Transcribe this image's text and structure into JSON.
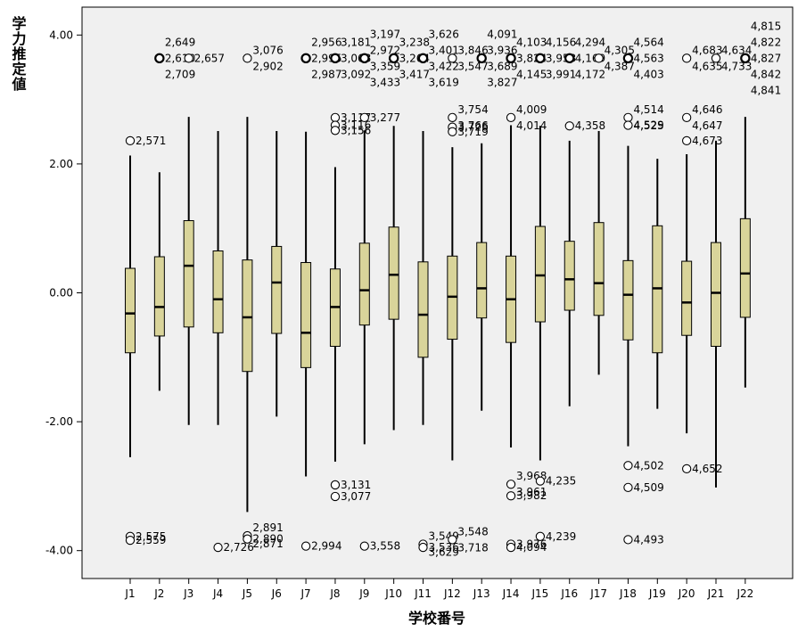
{
  "chart_data": {
    "type": "boxplot",
    "xlabel": "学校番号",
    "ylabel": "学力推定値",
    "ylim": [
      -4.5,
      4.4
    ],
    "yticks": [
      4.0,
      2.0,
      0.0,
      -2.0,
      -4.0
    ],
    "ytick_labels": [
      "4.00",
      "2.00",
      "0.00",
      "-2.00",
      "-4.00"
    ],
    "grid": false,
    "colors": {
      "box_fill": "#d9d49a",
      "plot_bg": "#f0f0f0",
      "line": "#000000"
    },
    "categories": [
      "J1",
      "J2",
      "J3",
      "J4",
      "J5",
      "J6",
      "J7",
      "J8",
      "J9",
      "J10",
      "J11",
      "J12",
      "J13",
      "J14",
      "J15",
      "J16",
      "J17",
      "J18",
      "J19",
      "J20",
      "J21",
      "J22"
    ],
    "boxes": [
      {
        "q1": -0.93,
        "median": -0.32,
        "q3": 0.38,
        "lo": -2.55,
        "hi": 2.13
      },
      {
        "q1": -0.67,
        "median": -0.22,
        "q3": 0.56,
        "lo": -1.52,
        "hi": 1.87
      },
      {
        "q1": -0.53,
        "median": 0.42,
        "q3": 1.12,
        "lo": -2.05,
        "hi": 2.73
      },
      {
        "q1": -0.62,
        "median": -0.1,
        "q3": 0.65,
        "lo": -2.05,
        "hi": 2.51
      },
      {
        "q1": -1.22,
        "median": -0.38,
        "q3": 0.51,
        "lo": -3.4,
        "hi": 2.73
      },
      {
        "q1": -0.63,
        "median": 0.16,
        "q3": 0.72,
        "lo": -1.92,
        "hi": 2.51
      },
      {
        "q1": -1.16,
        "median": -0.62,
        "q3": 0.47,
        "lo": -2.85,
        "hi": 2.5
      },
      {
        "q1": -0.83,
        "median": -0.22,
        "q3": 0.37,
        "lo": -2.62,
        "hi": 1.95
      },
      {
        "q1": -0.5,
        "median": 0.04,
        "q3": 0.77,
        "lo": -2.35,
        "hi": 2.52
      },
      {
        "q1": -0.41,
        "median": 0.28,
        "q3": 1.02,
        "lo": -2.13,
        "hi": 2.59
      },
      {
        "q1": -1.0,
        "median": -0.34,
        "q3": 0.48,
        "lo": -2.05,
        "hi": 2.51
      },
      {
        "q1": -0.72,
        "median": -0.06,
        "q3": 0.57,
        "lo": -2.6,
        "hi": 2.26
      },
      {
        "q1": -0.39,
        "median": 0.07,
        "q3": 0.78,
        "lo": -1.83,
        "hi": 2.32
      },
      {
        "q1": -0.77,
        "median": -0.1,
        "q3": 0.57,
        "lo": -2.4,
        "hi": 2.6
      },
      {
        "q1": -0.45,
        "median": 0.27,
        "q3": 1.03,
        "lo": -2.6,
        "hi": 2.59
      },
      {
        "q1": -0.27,
        "median": 0.21,
        "q3": 0.8,
        "lo": -1.76,
        "hi": 2.36
      },
      {
        "q1": -0.35,
        "median": 0.15,
        "q3": 1.09,
        "lo": -1.27,
        "hi": 2.51
      },
      {
        "q1": -0.73,
        "median": -0.03,
        "q3": 0.5,
        "lo": -2.38,
        "hi": 2.28
      },
      {
        "q1": -0.93,
        "median": 0.07,
        "q3": 1.04,
        "lo": -1.8,
        "hi": 2.08
      },
      {
        "q1": -0.66,
        "median": -0.15,
        "q3": 0.49,
        "lo": -2.18,
        "hi": 2.15
      },
      {
        "q1": -0.83,
        "median": 0.0,
        "q3": 0.78,
        "lo": -3.02,
        "hi": 2.36
      },
      {
        "q1": -0.38,
        "median": 0.3,
        "q3": 1.15,
        "lo": -1.47,
        "hi": 2.73
      }
    ],
    "outliers": [
      {
        "cat": "J1",
        "y": 2.36,
        "labels": [
          "2,571"
        ]
      },
      {
        "cat": "J1",
        "y": -3.78,
        "labels": [
          "2,575"
        ]
      },
      {
        "cat": "J1",
        "y": -3.84,
        "labels": [
          "2,559"
        ]
      },
      {
        "cat": "J2",
        "y": 3.64,
        "labels": [
          "2,649",
          "2,610",
          "2,709"
        ]
      },
      {
        "cat": "J3",
        "y": 3.64,
        "labels": [
          "2,657"
        ]
      },
      {
        "cat": "J4",
        "y": -3.95,
        "labels": [
          "2,726"
        ]
      },
      {
        "cat": "J5",
        "y": 3.64,
        "labels": [
          "3,076",
          "2,902"
        ]
      },
      {
        "cat": "J5",
        "y": -3.77,
        "labels": [
          "2,891",
          "2,871"
        ]
      },
      {
        "cat": "J5",
        "y": -3.82,
        "labels": [
          "2,890"
        ]
      },
      {
        "cat": "J7",
        "y": 3.64,
        "labels": [
          "2,956",
          "2,995",
          "2,987"
        ]
      },
      {
        "cat": "J7",
        "y": -3.93,
        "labels": [
          "2,994"
        ]
      },
      {
        "cat": "J8",
        "y": 3.64,
        "labels": [
          "3,181",
          "3,068",
          "3,092"
        ]
      },
      {
        "cat": "J8",
        "y": 2.72,
        "labels": [
          "3,117"
        ]
      },
      {
        "cat": "J8",
        "y": 2.6,
        "labels": [
          "3,116"
        ]
      },
      {
        "cat": "J8",
        "y": 2.52,
        "labels": [
          "3,156"
        ]
      },
      {
        "cat": "J8",
        "y": -2.98,
        "labels": [
          "3,131"
        ]
      },
      {
        "cat": "J8",
        "y": -3.16,
        "labels": [
          "3,077"
        ]
      },
      {
        "cat": "J9",
        "y": 3.64,
        "labels": [
          "3,197",
          "2,972",
          "3,359",
          "3,433"
        ]
      },
      {
        "cat": "J9",
        "y": 2.72,
        "labels": [
          "3,277"
        ]
      },
      {
        "cat": "J9",
        "y": -3.93,
        "labels": [
          "3,558"
        ]
      },
      {
        "cat": "J10",
        "y": 3.64,
        "labels": [
          "3,238",
          "3,264",
          "3,417"
        ]
      },
      {
        "cat": "J11",
        "y": 3.64,
        "labels": [
          "3,626",
          "3,401",
          "3,422",
          "3,619"
        ]
      },
      {
        "cat": "J11",
        "y": -3.9,
        "labels": [
          "3,549",
          "3,629"
        ]
      },
      {
        "cat": "J11",
        "y": -3.95,
        "labels": [
          "3,536"
        ]
      },
      {
        "cat": "J12",
        "y": 3.64,
        "labels": [
          "3,846",
          "3,547"
        ]
      },
      {
        "cat": "J12",
        "y": 2.72,
        "labels": [
          "3,754",
          "3,766"
        ]
      },
      {
        "cat": "J12",
        "y": 2.57,
        "labels": [
          "3,726"
        ]
      },
      {
        "cat": "J12",
        "y": 2.5,
        "labels": [
          "3,719"
        ]
      },
      {
        "cat": "J12",
        "y": -3.83,
        "labels": [
          "3,548",
          "3,718"
        ]
      },
      {
        "cat": "J13",
        "y": 3.64,
        "labels": [
          "4,091",
          "3,936",
          "3,689",
          "3,827"
        ]
      },
      {
        "cat": "J14",
        "y": 3.64,
        "labels": [
          "4,103",
          "3,824",
          "4,145"
        ]
      },
      {
        "cat": "J14",
        "y": 2.72,
        "labels": [
          "4,009",
          "4,014"
        ]
      },
      {
        "cat": "J14",
        "y": -2.97,
        "labels": [
          "3,968",
          "3,961"
        ]
      },
      {
        "cat": "J14",
        "y": -3.15,
        "labels": [
          "3,982"
        ]
      },
      {
        "cat": "J14",
        "y": -3.9,
        "labels": [
          "3,976"
        ]
      },
      {
        "cat": "J14",
        "y": -3.95,
        "labels": [
          "4,094"
        ]
      },
      {
        "cat": "J15",
        "y": 3.64,
        "labels": [
          "4,156",
          "3,953",
          "3,991"
        ]
      },
      {
        "cat": "J15",
        "y": -2.92,
        "labels": [
          "4,235"
        ]
      },
      {
        "cat": "J15",
        "y": -3.78,
        "labels": [
          "4,239"
        ]
      },
      {
        "cat": "J16",
        "y": 3.64,
        "labels": [
          "4,294",
          "4,169",
          "4,172"
        ]
      },
      {
        "cat": "J16",
        "y": 2.59,
        "labels": [
          "4,358"
        ]
      },
      {
        "cat": "J17",
        "y": 3.64,
        "labels": [
          "4,305",
          "4,387"
        ]
      },
      {
        "cat": "J18",
        "y": 3.64,
        "labels": [
          "4,564",
          "4,563",
          "4,403"
        ]
      },
      {
        "cat": "J18",
        "y": 2.72,
        "labels": [
          "4,514",
          "4,525"
        ]
      },
      {
        "cat": "J18",
        "y": 2.6,
        "labels": [
          "4,529"
        ]
      },
      {
        "cat": "J18",
        "y": -2.68,
        "labels": [
          "4,502"
        ]
      },
      {
        "cat": "J18",
        "y": -3.02,
        "labels": [
          "4,509"
        ]
      },
      {
        "cat": "J18",
        "y": -3.83,
        "labels": [
          "4,493"
        ]
      },
      {
        "cat": "J20",
        "y": 3.64,
        "labels": [
          "4,683",
          "4,635"
        ]
      },
      {
        "cat": "J20",
        "y": 2.72,
        "labels": [
          "4,646",
          "4,647"
        ]
      },
      {
        "cat": "J20",
        "y": 2.36,
        "labels": [
          "4,673"
        ]
      },
      {
        "cat": "J20",
        "y": -2.73,
        "labels": [
          "4,652"
        ]
      },
      {
        "cat": "J21",
        "y": 3.64,
        "labels": [
          "4,634",
          "4,733"
        ]
      },
      {
        "cat": "J22",
        "y": 3.64,
        "labels": [
          "4,815",
          "4,822",
          "4,827",
          "4,842",
          "4,841"
        ]
      }
    ]
  }
}
